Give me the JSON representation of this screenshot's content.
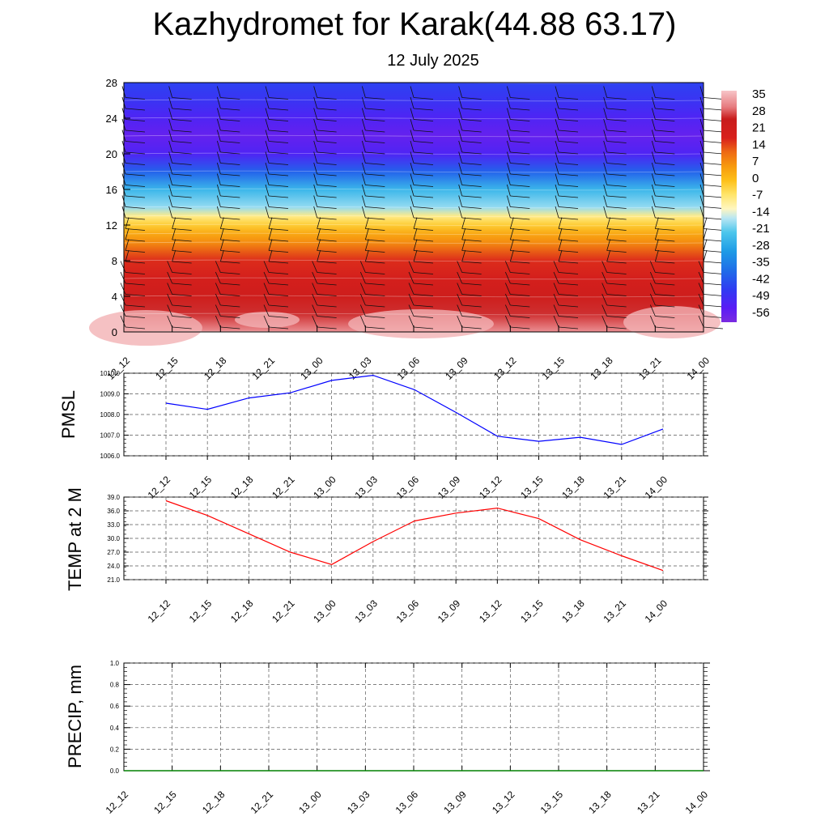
{
  "header": {
    "title": "Kazhydromet for Karak(44.88 63.17)",
    "subtitle": "12 July 2025"
  },
  "chart_data": [
    {
      "type": "heatmap",
      "panel": "temperature-wind-cross-section",
      "x_ticks": [
        "12_12",
        "12_15",
        "12_18",
        "12_21",
        "13_00",
        "13_03",
        "13_06",
        "13_09",
        "13_12",
        "13_15",
        "13_18",
        "13_21",
        "14_00"
      ],
      "y_ticks": [
        "0",
        "4",
        "8",
        "12",
        "16",
        "20",
        "24",
        "28"
      ],
      "ylim": [
        0,
        28
      ],
      "colorbar_labels": [
        "35",
        "28",
        "21",
        "14",
        "7",
        "0",
        "-7",
        "-14",
        "-21",
        "-28",
        "-35",
        "-42",
        "-49",
        "-56"
      ],
      "colorbar_range": [
        -60,
        38
      ],
      "temperature_profile": [
        {
          "level": 0,
          "value": 33
        },
        {
          "level": 2,
          "value": 27
        },
        {
          "level": 4,
          "value": 23
        },
        {
          "level": 6,
          "value": 20
        },
        {
          "level": 8,
          "value": 17
        },
        {
          "level": 10,
          "value": 8
        },
        {
          "level": 11,
          "value": 4
        },
        {
          "level": 12,
          "value": -2
        },
        {
          "level": 13,
          "value": -8
        },
        {
          "level": 14,
          "value": -18
        },
        {
          "level": 16,
          "value": -25
        },
        {
          "level": 18,
          "value": -40
        },
        {
          "level": 20,
          "value": -52
        },
        {
          "level": 22,
          "value": -56
        },
        {
          "level": 24,
          "value": -52
        },
        {
          "level": 26,
          "value": -48
        },
        {
          "level": 28,
          "value": -45
        }
      ],
      "wind_barbs": "present"
    },
    {
      "type": "line",
      "panel": "pmsl",
      "ylabel": "PMSL",
      "x_ticks": [
        "12_12",
        "12_15",
        "12_18",
        "12_21",
        "13_00",
        "13_03",
        "13_06",
        "13_09",
        "13_12",
        "13_15",
        "13_18",
        "13_21",
        "14_00"
      ],
      "y_ticks": [
        "1006.0",
        "1007.0",
        "1008.0",
        "1009.0",
        "1010.0"
      ],
      "ylim": [
        1006.0,
        1010.0
      ],
      "grid": true,
      "series": [
        {
          "color": "#0000ff",
          "values": [
            1008.55,
            1008.25,
            1008.8,
            1009.05,
            1009.65,
            1009.9,
            1009.2,
            1008.1,
            1006.95,
            1006.7,
            1006.9,
            1006.55,
            1007.3
          ]
        }
      ]
    },
    {
      "type": "line",
      "panel": "temp2m",
      "ylabel": "TEMP at 2 M",
      "x_ticks": [
        "12_12",
        "12_15",
        "12_18",
        "12_21",
        "13_00",
        "13_03",
        "13_06",
        "13_09",
        "13_12",
        "13_15",
        "13_18",
        "13_21",
        "14_00"
      ],
      "y_ticks": [
        "21.0",
        "24.0",
        "27.0",
        "30.0",
        "33.0",
        "36.0",
        "39.0"
      ],
      "ylim": [
        21.0,
        39.0
      ],
      "grid": true,
      "series": [
        {
          "color": "#ff0000",
          "values": [
            38.2,
            35.0,
            31.0,
            27.0,
            24.3,
            29.3,
            33.8,
            35.5,
            36.6,
            34.3,
            29.7,
            26.2,
            23.0
          ]
        }
      ]
    },
    {
      "type": "line",
      "panel": "precip",
      "ylabel": "PRECIP, mm",
      "x_ticks": [
        "12_12",
        "12_15",
        "12_18",
        "12_21",
        "13_00",
        "13_03",
        "13_06",
        "13_09",
        "13_12",
        "13_15",
        "13_18",
        "13_21",
        "14_00"
      ],
      "y_ticks": [
        "0.0",
        "0.2",
        "0.4",
        "0.6",
        "0.8",
        "1.0"
      ],
      "ylim": [
        0.0,
        1.0
      ],
      "grid": true,
      "series": [
        {
          "color": "#008000",
          "values": [
            0,
            0,
            0,
            0,
            0,
            0,
            0,
            0,
            0,
            0,
            0,
            0,
            0
          ]
        }
      ]
    }
  ]
}
